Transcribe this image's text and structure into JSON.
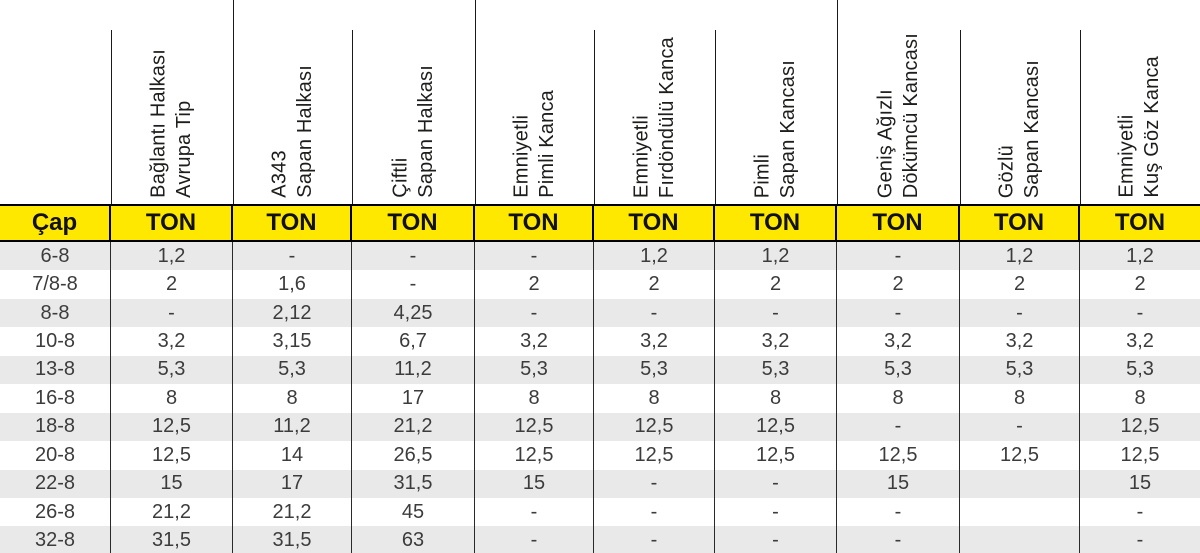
{
  "table": {
    "cap_header": "Çap",
    "ton_label": "TON",
    "columns": [
      {
        "label": "Bağlantı Halkası\nAvrupa Tip"
      },
      {
        "label": "A343\nSapan Halkası"
      },
      {
        "label": "Çiftli\nSapan Halkası"
      },
      {
        "label": "Emniyetli\nPimli Kanca"
      },
      {
        "label": "Emniyetli\nFırdöndülü Kanca"
      },
      {
        "label": "Pimli\nSapan Kancası"
      },
      {
        "label": "Geniş Ağızlı\nDökümcü Kancası"
      },
      {
        "label": "Gözlü\nSapan Kancası"
      },
      {
        "label": "Emniyetli\nKuş Göz Kanca"
      }
    ],
    "rows": [
      {
        "cap": "6-8",
        "values": [
          "1,2",
          "-",
          "-",
          "-",
          "1,2",
          "1,2",
          "-",
          "1,2",
          "1,2"
        ]
      },
      {
        "cap": "7/8-8",
        "values": [
          "2",
          "1,6",
          "-",
          "2",
          "2",
          "2",
          "2",
          "2",
          "2"
        ]
      },
      {
        "cap": "8-8",
        "values": [
          "-",
          "2,12",
          "4,25",
          "-",
          "-",
          "-",
          "-",
          "-",
          "-"
        ]
      },
      {
        "cap": "10-8",
        "values": [
          "3,2",
          "3,15",
          "6,7",
          "3,2",
          "3,2",
          "3,2",
          "3,2",
          "3,2",
          "3,2"
        ]
      },
      {
        "cap": "13-8",
        "values": [
          "5,3",
          "5,3",
          "11,2",
          "5,3",
          "5,3",
          "5,3",
          "5,3",
          "5,3",
          "5,3"
        ]
      },
      {
        "cap": "16-8",
        "values": [
          "8",
          "8",
          "17",
          "8",
          "8",
          "8",
          "8",
          "8",
          "8"
        ]
      },
      {
        "cap": "18-8",
        "values": [
          "12,5",
          "11,2",
          "21,2",
          "12,5",
          "12,5",
          "12,5",
          "-",
          "-",
          "12,5"
        ]
      },
      {
        "cap": "20-8",
        "values": [
          "12,5",
          "14",
          "26,5",
          "12,5",
          "12,5",
          "12,5",
          "12,5",
          "12,5",
          "12,5"
        ]
      },
      {
        "cap": "22-8",
        "values": [
          "15",
          "17",
          "31,5",
          "15",
          "-",
          "-",
          "15",
          "",
          "15"
        ]
      },
      {
        "cap": "26-8",
        "values": [
          "21,2",
          "21,2",
          "45",
          "-",
          "-",
          "-",
          "-",
          "",
          "-"
        ]
      },
      {
        "cap": "32-8",
        "values": [
          "31,5",
          "31,5",
          "63",
          "-",
          "-",
          "-",
          "-",
          "",
          "-"
        ]
      }
    ],
    "colors": {
      "highlight": "#ffe800",
      "stripe": "#e9e9e9",
      "line": "#000000",
      "text": "#3c3c3c"
    }
  },
  "chart_data": {
    "type": "table",
    "title": "",
    "columns": [
      "Çap",
      "Bağlantı Halkası Avrupa Tip (TON)",
      "A343 Sapan Halkası (TON)",
      "Çiftli Sapan Halkası (TON)",
      "Emniyetli Pimli Kanca (TON)",
      "Emniyetli Fırdöndülü Kanca (TON)",
      "Pimli Sapan Kancası (TON)",
      "Geniş Ağızlı Dökümcü Kancası (TON)",
      "Gözlü Sapan Kancası (TON)",
      "Emniyetli Kuş Göz Kanca (TON)"
    ],
    "rows": [
      [
        "6-8",
        "1,2",
        "-",
        "-",
        "-",
        "1,2",
        "1,2",
        "-",
        "1,2",
        "1,2"
      ],
      [
        "7/8-8",
        "2",
        "1,6",
        "-",
        "2",
        "2",
        "2",
        "2",
        "2",
        "2"
      ],
      [
        "8-8",
        "-",
        "2,12",
        "4,25",
        "-",
        "-",
        "-",
        "-",
        "-",
        "-"
      ],
      [
        "10-8",
        "3,2",
        "3,15",
        "6,7",
        "3,2",
        "3,2",
        "3,2",
        "3,2",
        "3,2",
        "3,2"
      ],
      [
        "13-8",
        "5,3",
        "5,3",
        "11,2",
        "5,3",
        "5,3",
        "5,3",
        "5,3",
        "5,3",
        "5,3"
      ],
      [
        "16-8",
        "8",
        "8",
        "17",
        "8",
        "8",
        "8",
        "8",
        "8",
        "8"
      ],
      [
        "18-8",
        "12,5",
        "11,2",
        "21,2",
        "12,5",
        "12,5",
        "12,5",
        "-",
        "-",
        "12,5"
      ],
      [
        "20-8",
        "12,5",
        "14",
        "26,5",
        "12,5",
        "12,5",
        "12,5",
        "12,5",
        "12,5",
        "12,5"
      ],
      [
        "22-8",
        "15",
        "17",
        "31,5",
        "15",
        "-",
        "-",
        "15",
        "",
        "15"
      ],
      [
        "26-8",
        "21,2",
        "21,2",
        "45",
        "-",
        "-",
        "-",
        "-",
        "",
        "-"
      ],
      [
        "32-8",
        "31,5",
        "31,5",
        "63",
        "-",
        "-",
        "-",
        "-",
        "",
        "-"
      ]
    ]
  }
}
